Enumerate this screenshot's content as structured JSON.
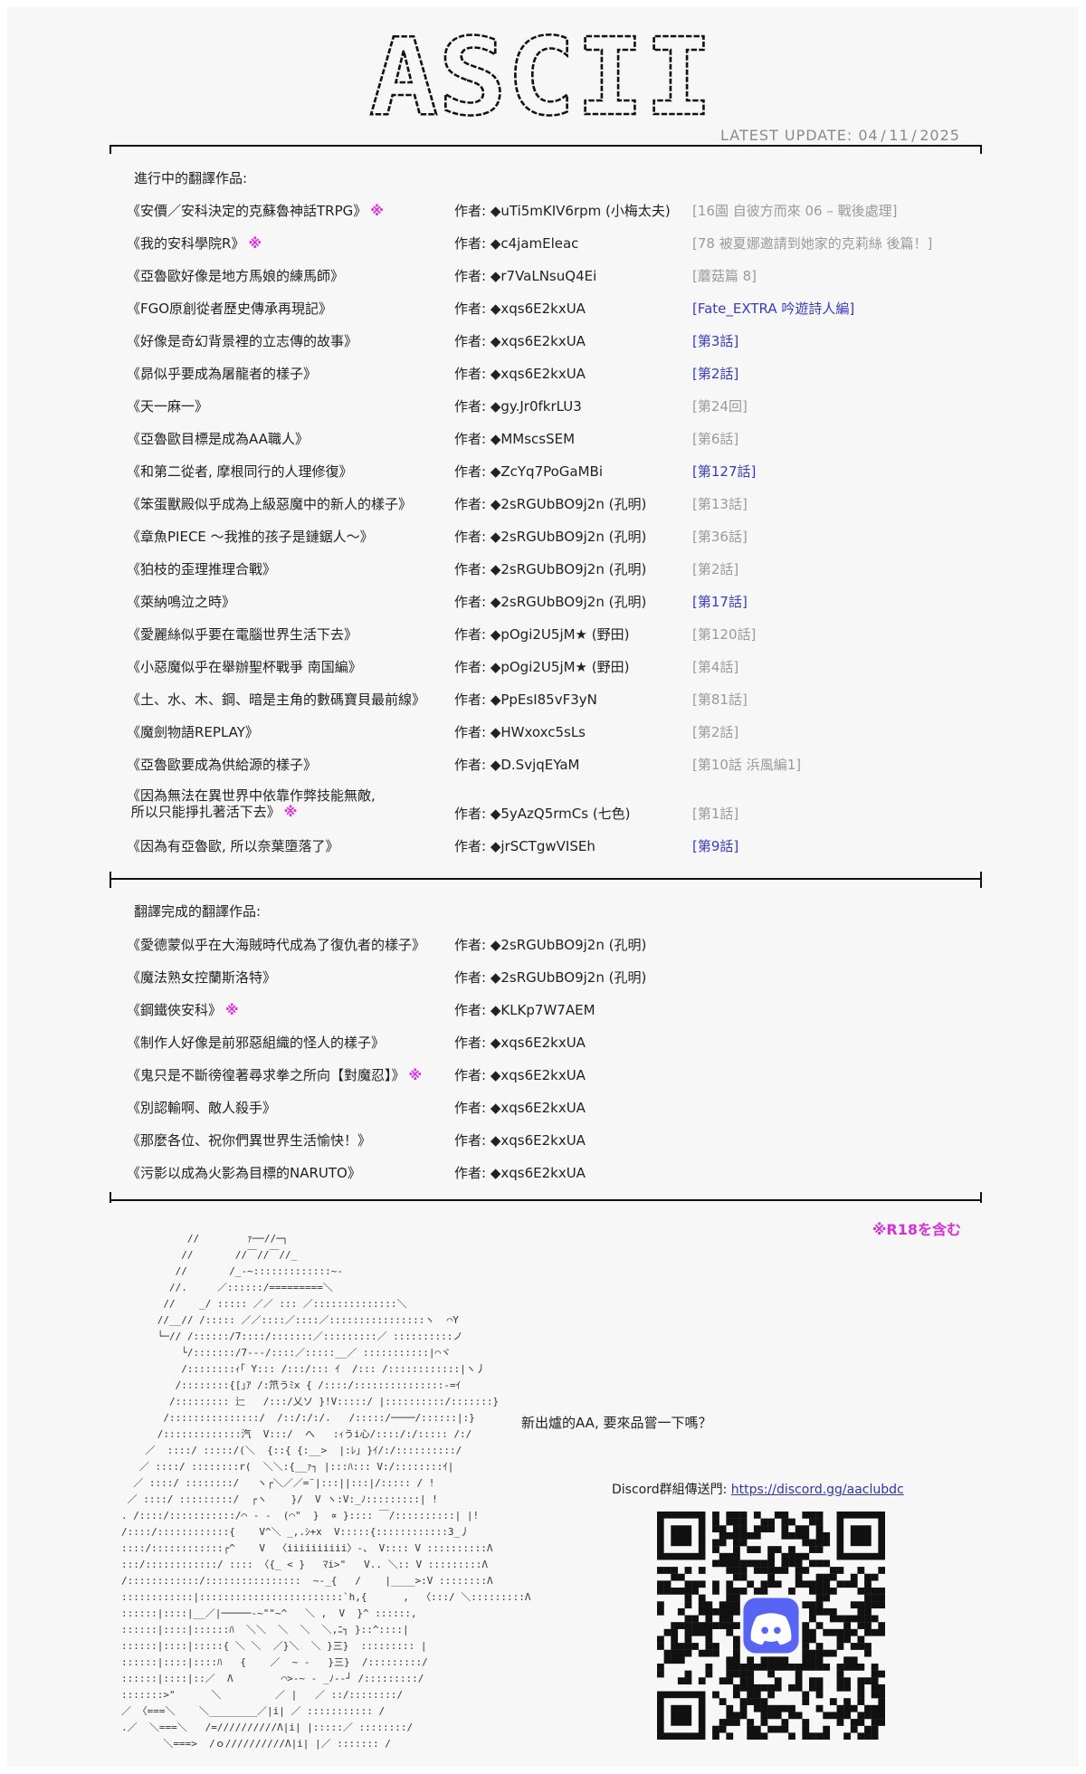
{
  "header": {
    "logo_text": "ASCII",
    "latest_update": "LATEST  UPDATE: 04 / 11 / 2025"
  },
  "ongoing": {
    "title": "進行中的翻譯作品:",
    "items": [
      {
        "title": "《安價／安科決定的克蘇魯神話TRPG》",
        "r18": "※",
        "author": "作者: ◆uTi5mKIV6rpm (小梅太夫)",
        "chapter": "[16園 自彼方而來 06 – 戰後處理]",
        "new": false
      },
      {
        "title": "《我的安科學院R》",
        "r18": "※",
        "author": "作者: ◆c4jamEleac",
        "chapter": "[78 被夏娜邀請到她家的克莉絲 後篇！]",
        "new": false
      },
      {
        "title": "《亞魯歐好像是地方馬娘的練馬師》",
        "r18": "",
        "author": "作者: ◆r7VaLNsuQ4Ei",
        "chapter": "[蘑菇篇 8]",
        "new": false
      },
      {
        "title": "《FGO原創從者歷史傳承再現記》",
        "r18": "",
        "author": "作者: ◆xqs6E2kxUA",
        "chapter": "[Fate_EXTRA 吟遊詩人編]",
        "new": true
      },
      {
        "title": "《好像是奇幻背景裡的立志傳的故事》",
        "r18": "",
        "author": "作者: ◆xqs6E2kxUA",
        "chapter": "[第3話]",
        "new": true
      },
      {
        "title": "《昴似乎要成為屠龍者的樣子》",
        "r18": "",
        "author": "作者: ◆xqs6E2kxUA",
        "chapter": "[第2話]",
        "new": true
      },
      {
        "title": "《天一麻一》",
        "r18": "",
        "author": "作者: ◆gy.Jr0fkrLU3",
        "chapter": "[第24回]",
        "new": false
      },
      {
        "title": "《亞魯歐目標是成為AA職人》",
        "r18": "",
        "author": "作者: ◆MMscsSEM",
        "chapter": "[第6話]",
        "new": false
      },
      {
        "title": "《和第二從者, 摩根同行的人理修復》",
        "r18": "",
        "author": "作者: ◆ZcYq7PoGaMBi",
        "chapter": "[第127話]",
        "new": true
      },
      {
        "title": "《笨蛋獸殿似乎成為上級惡魔中的新人的樣子》",
        "r18": "",
        "author": "作者: ◆2sRGUbBO9j2n (孔明)",
        "chapter": "[第13話]",
        "new": false
      },
      {
        "title": "《章魚PIECE ～我推的孩子是鏈鋸人～》",
        "r18": "",
        "author": "作者: ◆2sRGUbBO9j2n (孔明)",
        "chapter": "[第36話]",
        "new": false
      },
      {
        "title": "《狛枝的歪理推理合戰》",
        "r18": "",
        "author": "作者: ◆2sRGUbBO9j2n (孔明)",
        "chapter": "[第2話]",
        "new": false
      },
      {
        "title": "《萊納鳴泣之時》",
        "r18": "",
        "author": "作者: ◆2sRGUbBO9j2n (孔明)",
        "chapter": "[第17話]",
        "new": true
      },
      {
        "title": "《愛麗絲似乎要在電腦世界生活下去》",
        "r18": "",
        "author": "作者: ◆pOgi2U5jM★ (野田)",
        "chapter": "[第120話]",
        "new": false
      },
      {
        "title": "《小惡魔似乎在舉辦聖杯戰爭 南国編》",
        "r18": "",
        "author": "作者: ◆pOgi2U5jM★ (野田)",
        "chapter": "[第4話]",
        "new": false
      },
      {
        "title": "《土、水、木、鋼、暗是主角的數碼寶貝最前線》",
        "r18": "",
        "author": "作者: ◆PpEsI85vF3yN",
        "chapter": "[第81話]",
        "new": false
      },
      {
        "title": "《魔劍物語REPLAY》",
        "r18": "",
        "author": "作者: ◆HWxoxc5sLs",
        "chapter": "[第2話]",
        "new": false
      },
      {
        "title": "《亞魯歐要成為供給源的樣子》",
        "r18": "",
        "author": "作者: ◆D.SvjqEYaM",
        "chapter": "[第10話 浜風編1]",
        "new": false
      },
      {
        "title": "《因為無法在異世界中依靠作弊技能無敵,\n 所以只能掙扎著活下去》",
        "r18": "※",
        "author": "作者: ◆5yAzQ5rmCs (七色)",
        "chapter": "[第1話]",
        "new": false,
        "tall": true
      },
      {
        "title": "《因為有亞魯歐, 所以奈葉墮落了》",
        "r18": "",
        "author": "作者: ◆jrSCTgwVISEh",
        "chapter": "[第9話]",
        "new": true
      }
    ]
  },
  "completed": {
    "title": "翻譯完成的翻譯作品:",
    "items": [
      {
        "title": "《愛德蒙似乎在大海賊時代成為了復仇者的樣子》",
        "r18": "",
        "author": "作者: ◆2sRGUbBO9j2n (孔明)"
      },
      {
        "title": "《魔法熟女控蘭斯洛特》",
        "r18": "",
        "author": "作者: ◆2sRGUbBO9j2n (孔明)"
      },
      {
        "title": "《鋼鐵俠安科》",
        "r18": "※",
        "author": "作者: ◆KLKp7W7AEM"
      },
      {
        "title": "《制作人好像是前邪惡組織的怪人的樣子》",
        "r18": "",
        "author": "作者: ◆xqs6E2kxUA"
      },
      {
        "title": "《鬼只是不斷徬徨著尋求拳之所向【對魔忍】》",
        "r18": "※",
        "author": "作者: ◆xqs6E2kxUA"
      },
      {
        "title": "《別認輸啊、敵人殺手》",
        "r18": "",
        "author": "作者: ◆xqs6E2kxUA"
      },
      {
        "title": "《那麼各位、祝你們異世界生活愉快！》",
        "r18": "",
        "author": "作者: ◆xqs6E2kxUA"
      },
      {
        "title": "《污影以成為火影為目標的NARUTO》",
        "r18": "",
        "author": "作者: ◆xqs6E2kxUA"
      }
    ]
  },
  "footer": {
    "r18_note": "※R18を含む",
    "ask": "新出爐的AA, 要來品嘗一下嗎？",
    "discord_label": "Discord群組傳送門: ",
    "discord_link": "https://discord.gg/aaclubdc",
    "aa_art": "           //        ｧ──//─┐\n          //       //￣//￣//_\n         //       /_-~:::::::::::::~-\n        //.     ／::::::/=========＼\n       //    _/ ::::: ／／ ::: ／::::::::::::::＼\n      //__// /::::: ／／::::／::::／::::::::::::::::ヽ  ⌒Y\n      └─// /::::::/7::::/:::::::／:::::::::／ ::::::::::ノ\n          └/:::::::/7---/::::／:::::__／ :::::::::::|⌒ヾ\n          /::::::::ｨ｢ Y::: /:::/::: ｲ  /::: /::::::::::::|ヽ丿\n         /::::::::{[｣ｱ /:笊うﾐx { /::::/:::::::::::::::-=ｲ\n        /::::::::: 辷   /:::/乂ソ }!V:::::/ |::::::::::/:::::::}\n       /:::::::::::::::/  /::/:/:/.   /:::::/────/::::::|:}\n      /:::::::::::::汽  V:::/  へ   :ｨうi心/::::/:/::::: /:/\n    ／  ::::/ :::::/(＼  {::{ {:__>  |:ﾚ｣ }ｲ/:/::::::::::/\n   ／ ::::/ ::::::::r(  ＼＼:{__ｧ┐ |:::ﾊ::: V:/::::::::ｲ|\n  ／ ::::/ ::::::::/   ヽ┌＼／／=¨|:::||:::|/::::: / !\n ／ ::::/ :::::::::/  ┌ヽ    }/  V ヽ:V:_ﾉ:::::::::| !\n. /::::/:::::::::::/⌒ - -  (⌒\"  }  ∝ }:::: ￣/::::::::::| |!\n/::::/::::::::::::{    V^＼ _,.ｼ+x  V:::::{::::::::::::3_丿\n::::/::::::::::::┌^    V  〈iiiiiiiiii〉-、 V:::: V ::::::::::Λ\n:::/::::::::::::/ :::: 〈{_ < }   ﾏi>\"   V.. ＼:: V :::::::::Λ\n/::::::::::::/::::::::::::::::  ~-_{   /    |____>:V ::::::::Λ\n::::::::::::|::::::::::::::::::::::::`h,{      ,  〈:::/ ＼:::::::::Λ\n::::::|::::|__／|─────-~\"\"~^   ＼ ,  V  }^ ::::::,\n::::::|::::|::::::ﾊ  ＼＼  ＼  ＼  ＼,ﾆ┐ }::^::::|\n::::::|::::|:::::{ ＼ ＼  ／}＼  ＼ }三}  ::::::::: |\n::::::|::::|::::ﾊ   {    ／  ~ -   }三}  /:::::::::/\n::::::|::::|::／  Λ        ⌒>-~ - _ﾉ--┘ /:::::::::/\n:::::::>\"      ＼         ／ |   ／ ::/::::::::/\n／ 〈===＼    ＼________／|i| ／ ::::::::::: /\n.／  ＼===＼   /=//////////Λ|i| |:::::／ ::::::::/\n       ＼===>  /ｏ//////////Λ|i| |／ ::::::: /"
  },
  "colors": {
    "background": "#f7f7f7",
    "new_chapter": "#3a3ac0",
    "old_chapter": "#9a9a9a",
    "r18_mark": "#e030e0",
    "discord_brand": "#5865f2"
  }
}
